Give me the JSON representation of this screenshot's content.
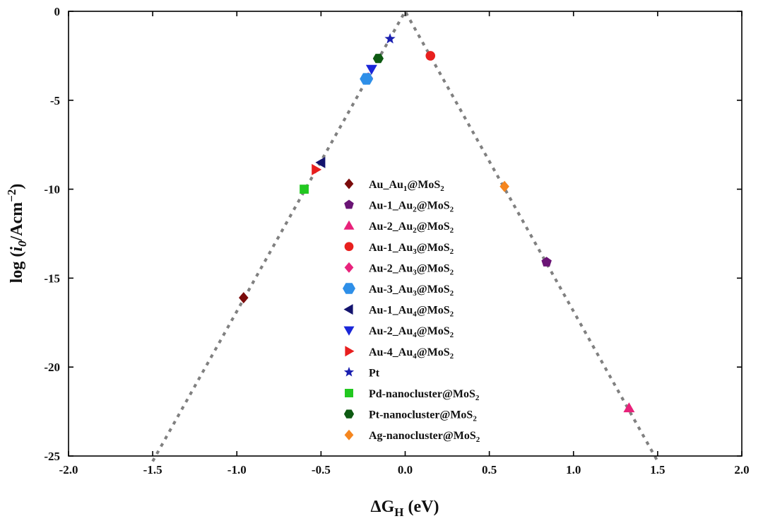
{
  "chart_data": {
    "type": "scatter",
    "title": "",
    "xlabel": "ΔG",
    "xlabel_sub": "H",
    "xlabel_unit": " (eV)",
    "ylabel_prefix": "log (",
    "ylabel_var": "i",
    "ylabel_sub": "0",
    "ylabel_unit": "/Acm",
    "ylabel_sup": "−2",
    "ylabel_suffix": ")",
    "xlim": [
      -2.0,
      2.0
    ],
    "ylim": [
      -25,
      0
    ],
    "xticks": [
      "-2.0",
      "-1.5",
      "-1.0",
      "-0.5",
      "0.0",
      "0.5",
      "1.0",
      "1.5",
      "2.0"
    ],
    "xtick_values": [
      -2.0,
      -1.5,
      -1.0,
      -0.5,
      0.0,
      0.5,
      1.0,
      1.5,
      2.0
    ],
    "yticks": [
      "0",
      "-5",
      "-10",
      "-15",
      "-20",
      "-25"
    ],
    "ytick_values": [
      0,
      -5,
      -10,
      -15,
      -20,
      -25
    ],
    "grid": false,
    "legend_position": "center",
    "reference_lines": [
      {
        "style": "dotted",
        "color": "#808080",
        "points": [
          [
            -1.5,
            -25.3
          ],
          [
            0.0,
            0.0
          ],
          [
            1.5,
            -25.3
          ]
        ]
      }
    ],
    "series": [
      {
        "name": "Au_Au",
        "sub": "1",
        "tail": "@MoS",
        "sub2": "2",
        "marker": "diamond",
        "color": "#7b0c0c",
        "x": [
          -0.96
        ],
        "y": [
          -16.1
        ]
      },
      {
        "name": "Au-1_Au",
        "sub": "2",
        "tail": "@MoS",
        "sub2": "2",
        "marker": "pentagon",
        "color": "#6a1475",
        "x": [
          0.84
        ],
        "y": [
          -14.1
        ]
      },
      {
        "name": "Au-2_Au",
        "sub": "2",
        "tail": "@MoS",
        "sub2": "2",
        "marker": "triangle-up",
        "color": "#e8217a",
        "x": [
          1.33
        ],
        "y": [
          -22.3
        ]
      },
      {
        "name": "Au-1_Au",
        "sub": "3",
        "tail": "@MoS",
        "sub2": "2",
        "marker": "circle",
        "color": "#e8201e",
        "x": [
          0.15
        ],
        "y": [
          -2.5
        ]
      },
      {
        "name": "Au-2_Au",
        "sub": "3",
        "tail": "@MoS",
        "sub2": "2",
        "marker": "diamond",
        "color": "#e8237c",
        "x": [
          -0.22
        ],
        "y": [
          -3.75
        ]
      },
      {
        "name": "Au-3_Au",
        "sub": "3",
        "tail": "@MoS",
        "sub2": "2",
        "marker": "hexagon",
        "color": "#2e8fe8",
        "x": [
          -0.23
        ],
        "y": [
          -3.8
        ]
      },
      {
        "name": "Au-1_Au",
        "sub": "4",
        "tail": "@MoS",
        "sub2": "2",
        "marker": "triangle-left",
        "color": "#13136e",
        "x": [
          -0.5
        ],
        "y": [
          -8.5
        ]
      },
      {
        "name": "Au-2_Au",
        "sub": "4",
        "tail": "@MoS",
        "sub2": "2",
        "marker": "triangle-down",
        "color": "#1a26d8",
        "x": [
          -0.2
        ],
        "y": [
          -3.25
        ]
      },
      {
        "name": "Au-4_Au",
        "sub": "4",
        "tail": "@MoS",
        "sub2": "2",
        "marker": "triangle-right",
        "color": "#e81e1e",
        "x": [
          -0.53
        ],
        "y": [
          -8.9
        ]
      },
      {
        "name": "Pt",
        "sub": "",
        "tail": "",
        "sub2": "",
        "marker": "star",
        "color": "#1a1fb0",
        "x": [
          -0.09
        ],
        "y": [
          -1.55
        ]
      },
      {
        "name": "Pd-nanocluster@MoS",
        "sub": "",
        "tail": "",
        "sub2": "2",
        "marker": "square",
        "color": "#22c820",
        "x": [
          -0.6
        ],
        "y": [
          -10.0
        ]
      },
      {
        "name": "Pt-nanocluster@MoS",
        "sub": "",
        "tail": "",
        "sub2": "2",
        "marker": "hexagon",
        "color": "#0d5a12",
        "x": [
          -0.16
        ],
        "y": [
          -2.65
        ]
      },
      {
        "name": "Ag-nanocluster@MoS",
        "sub": "",
        "tail": "",
        "sub2": "2",
        "marker": "diamond",
        "color": "#f5861f",
        "x": [
          0.59
        ],
        "y": [
          -9.85
        ]
      }
    ]
  }
}
